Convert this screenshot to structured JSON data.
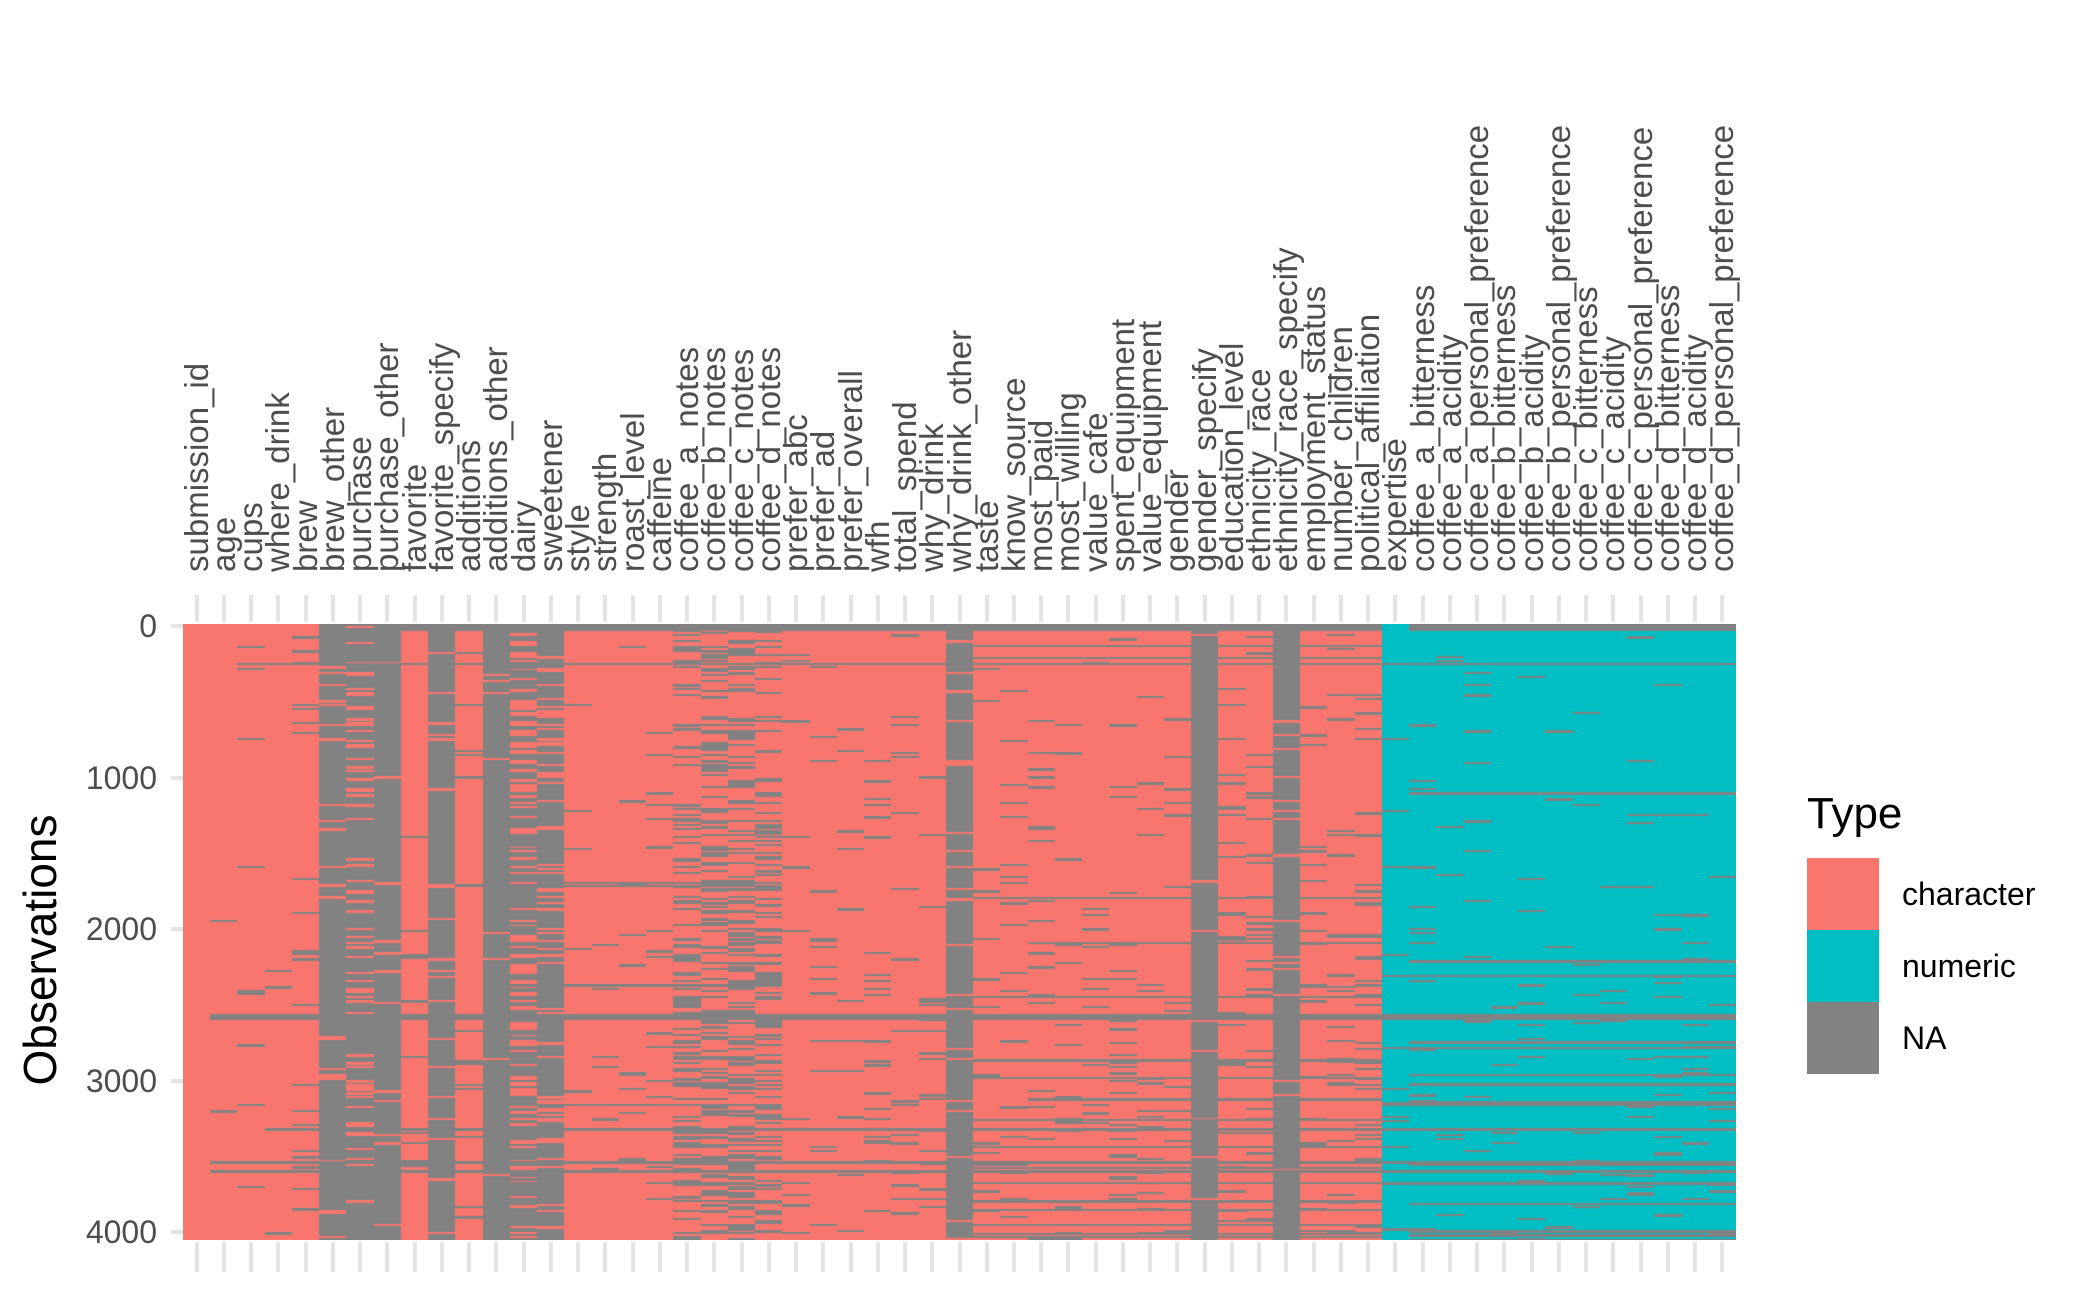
{
  "chart_data": {
    "type": "heatmap",
    "subtype": "visdat-missing-data-and-type-map",
    "title": "",
    "xlabel": "",
    "ylabel": "Observations",
    "y_axis": {
      "label": "Observations",
      "ticks": [
        0,
        1000,
        2000,
        3000,
        4000
      ],
      "max_row": 4050,
      "direction": "reversed-top-to-bottom"
    },
    "x_axis": {
      "label": "",
      "n_columns": 57,
      "tick_style": "light-gray-above-and-below-panel"
    },
    "legend": {
      "title": "Type",
      "position": "right",
      "entries": [
        {
          "label": "character",
          "color": "#F8766D"
        },
        {
          "label": "numeric",
          "color": "#00BFC4"
        },
        {
          "label": "NA",
          "color": "#828282"
        }
      ]
    },
    "colors": {
      "character": "#F8766D",
      "numeric": "#00BFC4",
      "na": "#828282",
      "tick": "#E4E4E4",
      "axis_text": "#4D4D4D",
      "axis_title": "#000000",
      "background": "#FFFFFF"
    },
    "grid": false,
    "columns": [
      {
        "name": "submission_id",
        "type": "character",
        "na_top_pct": 0,
        "na_bottom_pct": 0
      },
      {
        "name": "age",
        "type": "character",
        "na_top_pct": 1,
        "na_bottom_pct": 1
      },
      {
        "name": "cups",
        "type": "character",
        "na_top_pct": 1,
        "na_bottom_pct": 2
      },
      {
        "name": "where_drink",
        "type": "character",
        "na_top_pct": 1,
        "na_bottom_pct": 2
      },
      {
        "name": "brew",
        "type": "character",
        "na_top_pct": 5,
        "na_bottom_pct": 8
      },
      {
        "name": "brew_other",
        "type": "character",
        "na_top_pct": 90,
        "na_bottom_pct": 93
      },
      {
        "name": "purchase",
        "type": "character",
        "na_top_pct": 80,
        "na_bottom_pct": 86
      },
      {
        "name": "purchase_other",
        "type": "character",
        "na_top_pct": 95,
        "na_bottom_pct": 97
      },
      {
        "name": "favorite",
        "type": "character",
        "na_top_pct": 2,
        "na_bottom_pct": 5
      },
      {
        "name": "favorite_specify",
        "type": "character",
        "na_top_pct": 91,
        "na_bottom_pct": 94
      },
      {
        "name": "additions",
        "type": "character",
        "na_top_pct": 2,
        "na_bottom_pct": 6
      },
      {
        "name": "additions_other",
        "type": "character",
        "na_top_pct": 97,
        "na_bottom_pct": 98
      },
      {
        "name": "dairy",
        "type": "character",
        "na_top_pct": 42,
        "na_bottom_pct": 72
      },
      {
        "name": "sweetener",
        "type": "character",
        "na_top_pct": 72,
        "na_bottom_pct": 88
      },
      {
        "name": "style",
        "type": "character",
        "na_top_pct": 3,
        "na_bottom_pct": 7
      },
      {
        "name": "strength",
        "type": "character",
        "na_top_pct": 2,
        "na_bottom_pct": 6
      },
      {
        "name": "roast_level",
        "type": "character",
        "na_top_pct": 2,
        "na_bottom_pct": 6
      },
      {
        "name": "caffeine",
        "type": "character",
        "na_top_pct": 3,
        "na_bottom_pct": 7
      },
      {
        "name": "coffee_a_notes",
        "type": "character",
        "na_top_pct": 25,
        "na_bottom_pct": 38
      },
      {
        "name": "coffee_b_notes",
        "type": "character",
        "na_top_pct": 28,
        "na_bottom_pct": 42
      },
      {
        "name": "coffee_c_notes",
        "type": "character",
        "na_top_pct": 28,
        "na_bottom_pct": 42
      },
      {
        "name": "coffee_d_notes",
        "type": "character",
        "na_top_pct": 25,
        "na_bottom_pct": 38
      },
      {
        "name": "prefer_abc",
        "type": "character",
        "na_top_pct": 2,
        "na_bottom_pct": 6
      },
      {
        "name": "prefer_ad",
        "type": "character",
        "na_top_pct": 2,
        "na_bottom_pct": 6
      },
      {
        "name": "prefer_overall",
        "type": "character",
        "na_top_pct": 2,
        "na_bottom_pct": 7
      },
      {
        "name": "wfh",
        "type": "character",
        "na_top_pct": 3,
        "na_bottom_pct": 8
      },
      {
        "name": "total_spend",
        "type": "character",
        "na_top_pct": 4,
        "na_bottom_pct": 10
      },
      {
        "name": "why_drink",
        "type": "character",
        "na_top_pct": 3,
        "na_bottom_pct": 8
      },
      {
        "name": "why_drink_other",
        "type": "character",
        "na_top_pct": 91,
        "na_bottom_pct": 94
      },
      {
        "name": "taste",
        "type": "character",
        "na_top_pct": 2,
        "na_bottom_pct": 6
      },
      {
        "name": "know_source",
        "type": "character",
        "na_top_pct": 2,
        "na_bottom_pct": 7
      },
      {
        "name": "most_paid",
        "type": "character",
        "na_top_pct": 3,
        "na_bottom_pct": 8
      },
      {
        "name": "most_willing",
        "type": "character",
        "na_top_pct": 3,
        "na_bottom_pct": 8
      },
      {
        "name": "value_cafe",
        "type": "character",
        "na_top_pct": 3,
        "na_bottom_pct": 9
      },
      {
        "name": "spent_equipment",
        "type": "character",
        "na_top_pct": 3,
        "na_bottom_pct": 9
      },
      {
        "name": "value_equipment",
        "type": "character",
        "na_top_pct": 4,
        "na_bottom_pct": 10
      },
      {
        "name": "gender",
        "type": "character",
        "na_top_pct": 3,
        "na_bottom_pct": 8
      },
      {
        "name": "gender_specify",
        "type": "character",
        "na_top_pct": 97,
        "na_bottom_pct": 98
      },
      {
        "name": "education_level",
        "type": "character",
        "na_top_pct": 4,
        "na_bottom_pct": 10
      },
      {
        "name": "ethnicity_race",
        "type": "character",
        "na_top_pct": 4,
        "na_bottom_pct": 11
      },
      {
        "name": "ethnicity_race_specify",
        "type": "character",
        "na_top_pct": 96,
        "na_bottom_pct": 97
      },
      {
        "name": "employment_status",
        "type": "character",
        "na_top_pct": 5,
        "na_bottom_pct": 11
      },
      {
        "name": "number_children",
        "type": "character",
        "na_top_pct": 5,
        "na_bottom_pct": 12
      },
      {
        "name": "political_affiliation",
        "type": "character",
        "na_top_pct": 6,
        "na_bottom_pct": 14
      },
      {
        "name": "expertise",
        "type": "numeric",
        "na_top_pct": 2,
        "na_bottom_pct": 6
      },
      {
        "name": "coffee_a_bitterness",
        "type": "numeric",
        "na_top_pct": 1.5,
        "na_bottom_pct": 4
      },
      {
        "name": "coffee_a_acidity",
        "type": "numeric",
        "na_top_pct": 1.5,
        "na_bottom_pct": 4
      },
      {
        "name": "coffee_a_personal_preference",
        "type": "numeric",
        "na_top_pct": 1.5,
        "na_bottom_pct": 4
      },
      {
        "name": "coffee_b_bitterness",
        "type": "numeric",
        "na_top_pct": 1.5,
        "na_bottom_pct": 4
      },
      {
        "name": "coffee_b_acidity",
        "type": "numeric",
        "na_top_pct": 1.5,
        "na_bottom_pct": 4
      },
      {
        "name": "coffee_b_personal_preference",
        "type": "numeric",
        "na_top_pct": 1.5,
        "na_bottom_pct": 4
      },
      {
        "name": "coffee_c_bitterness",
        "type": "numeric",
        "na_top_pct": 1.5,
        "na_bottom_pct": 5
      },
      {
        "name": "coffee_c_acidity",
        "type": "numeric",
        "na_top_pct": 1.5,
        "na_bottom_pct": 5
      },
      {
        "name": "coffee_c_personal_preference",
        "type": "numeric",
        "na_top_pct": 1.5,
        "na_bottom_pct": 5
      },
      {
        "name": "coffee_d_bitterness",
        "type": "numeric",
        "na_top_pct": 2,
        "na_bottom_pct": 5
      },
      {
        "name": "coffee_d_acidity",
        "type": "numeric",
        "na_top_pct": 2,
        "na_bottom_pct": 5
      },
      {
        "name": "coffee_d_personal_preference",
        "type": "numeric",
        "na_top_pct": 2,
        "na_bottom_pct": 5
      }
    ],
    "na_structure": {
      "top_na_band": {
        "from_col": 8,
        "to_col": 56,
        "skip_cols": [
          44
        ],
        "height_rows": 45
      },
      "bottom_na_band": {
        "from_col": 45,
        "to_col": 56,
        "height_rows": 20
      },
      "shared_na_row_sections": [
        {
          "name": "global",
          "from_col": 1,
          "to_col": 56,
          "base_p": 0.008,
          "grow_p": 0.045,
          "pow": 1.7
        },
        {
          "name": "tasting_notes",
          "from_col": 12,
          "to_col": 21,
          "base_p": 0.01,
          "grow_p": 0.05,
          "pow": 1.5
        },
        {
          "name": "demographics",
          "from_col": 29,
          "to_col": 43,
          "base_p": 0.012,
          "grow_p": 0.16,
          "pow": 1.8
        },
        {
          "name": "ratings",
          "from_col": 45,
          "to_col": 56,
          "base_p": 0.012,
          "grow_p": 0.16,
          "pow": 1.9,
          "extend_to_expertise_p": 0.35
        }
      ]
    }
  }
}
